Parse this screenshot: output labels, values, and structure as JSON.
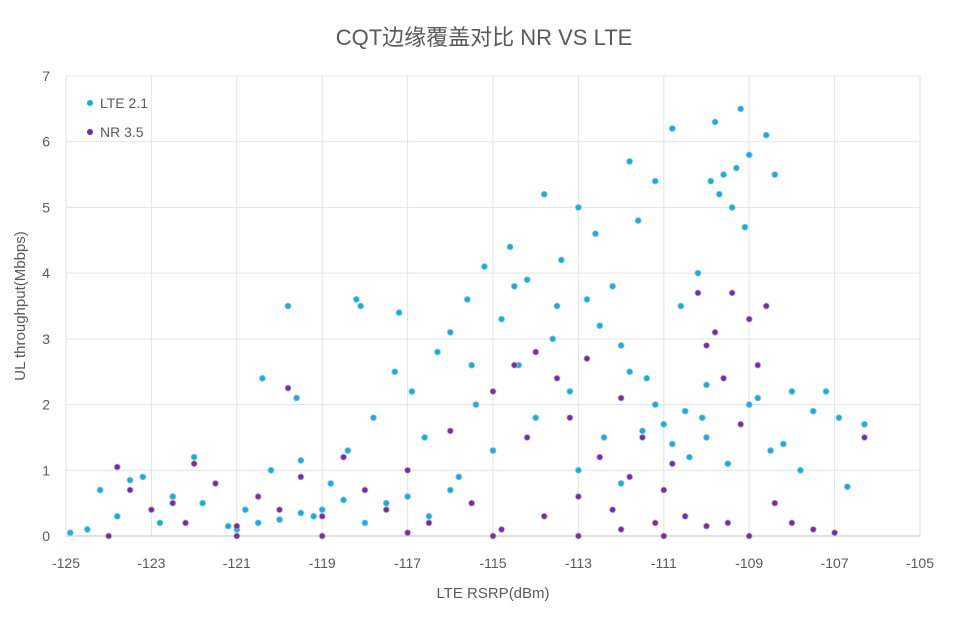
{
  "chart_data": {
    "type": "scatter",
    "title": "CQT边缘覆盖对比 NR VS LTE",
    "xlabel": "LTE RSRP(dBm)",
    "ylabel": "UL throughput(Mbbps)",
    "xlim": [
      -125,
      -105
    ],
    "ylim": [
      0,
      7
    ],
    "xticks": [
      -125,
      -123,
      -121,
      -119,
      -117,
      -115,
      -113,
      -111,
      -109,
      -107,
      -105
    ],
    "yticks": [
      0,
      1,
      2,
      3,
      4,
      5,
      6,
      7
    ],
    "grid": true,
    "legend_position": "top-left",
    "series": [
      {
        "name": "LTE 2.1",
        "color": "#22a9d6",
        "points": [
          [
            -124.9,
            0.05
          ],
          [
            -124.5,
            0.1
          ],
          [
            -124.2,
            0.7
          ],
          [
            -123.8,
            0.3
          ],
          [
            -123.5,
            0.85
          ],
          [
            -123.2,
            0.9
          ],
          [
            -122.8,
            0.2
          ],
          [
            -122.5,
            0.6
          ],
          [
            -122,
            1.2
          ],
          [
            -121.8,
            0.5
          ],
          [
            -121.2,
            0.15
          ],
          [
            -120.8,
            0.4
          ],
          [
            -120.4,
            2.4
          ],
          [
            -120.2,
            1.0
          ],
          [
            -119.8,
            3.5
          ],
          [
            -119.6,
            2.1
          ],
          [
            -119.5,
            1.15
          ],
          [
            -119.2,
            0.3
          ],
          [
            -118.8,
            0.8
          ],
          [
            -118.4,
            1.3
          ],
          [
            -118.2,
            3.6
          ],
          [
            -118.1,
            3.5
          ],
          [
            -117.8,
            1.8
          ],
          [
            -117.5,
            0.5
          ],
          [
            -117.3,
            2.5
          ],
          [
            -117.2,
            3.4
          ],
          [
            -116.9,
            2.2
          ],
          [
            -116.6,
            1.5
          ],
          [
            -116.3,
            2.8
          ],
          [
            -116,
            3.1
          ],
          [
            -115.8,
            0.9
          ],
          [
            -115.6,
            3.6
          ],
          [
            -115.4,
            2.0
          ],
          [
            -115.2,
            4.1
          ],
          [
            -115,
            1.3
          ],
          [
            -114.8,
            3.3
          ],
          [
            -114.6,
            4.4
          ],
          [
            -114.4,
            2.6
          ],
          [
            -114.2,
            3.9
          ],
          [
            -114,
            1.8
          ],
          [
            -113.8,
            5.2
          ],
          [
            -113.6,
            3.0
          ],
          [
            -113.4,
            4.2
          ],
          [
            -113.2,
            2.2
          ],
          [
            -113,
            5.0
          ],
          [
            -112.8,
            3.6
          ],
          [
            -112.6,
            4.6
          ],
          [
            -112.4,
            1.5
          ],
          [
            -112.2,
            3.8
          ],
          [
            -112,
            2.9
          ],
          [
            -111.8,
            5.7
          ],
          [
            -111.6,
            4.8
          ],
          [
            -111.4,
            2.4
          ],
          [
            -111.2,
            5.4
          ],
          [
            -111,
            1.7
          ],
          [
            -110.8,
            6.2
          ],
          [
            -110.6,
            3.5
          ],
          [
            -110.4,
            1.2
          ],
          [
            -110.2,
            4.0
          ],
          [
            -110,
            2.3
          ],
          [
            -109.8,
            6.3
          ],
          [
            -109.6,
            5.5
          ],
          [
            -109.4,
            5.0
          ],
          [
            -109.2,
            6.5
          ],
          [
            -109,
            5.8
          ],
          [
            -108.8,
            2.1
          ],
          [
            -108.6,
            6.1
          ],
          [
            -108.4,
            5.5
          ],
          [
            -108.2,
            1.4
          ],
          [
            -108,
            2.2
          ],
          [
            -107.8,
            1.0
          ],
          [
            -107.5,
            1.9
          ],
          [
            -107.2,
            2.2
          ],
          [
            -106.9,
            1.8
          ],
          [
            -106.7,
            0.75
          ],
          [
            -106.3,
            1.7
          ],
          [
            -121,
            0.1
          ],
          [
            -120.5,
            0.2
          ],
          [
            -120,
            0.25
          ],
          [
            -119.5,
            0.35
          ],
          [
            -119,
            0.4
          ],
          [
            -118.5,
            0.55
          ],
          [
            -118,
            0.2
          ],
          [
            -117,
            0.6
          ],
          [
            -116.5,
            0.3
          ],
          [
            -116,
            0.7
          ],
          [
            -113,
            1.0
          ],
          [
            -112,
            0.8
          ],
          [
            -111.5,
            1.6
          ],
          [
            -110.5,
            1.9
          ],
          [
            -110,
            1.5
          ],
          [
            -109.5,
            1.1
          ],
          [
            -109,
            2.0
          ],
          [
            -108.5,
            1.3
          ],
          [
            -109.7,
            5.2
          ],
          [
            -109.3,
            5.6
          ],
          [
            -109.1,
            4.7
          ],
          [
            -109.9,
            5.4
          ],
          [
            -110.1,
            1.8
          ],
          [
            -110.8,
            1.4
          ],
          [
            -111.2,
            2.0
          ],
          [
            -113.5,
            3.5
          ],
          [
            -114.5,
            3.8
          ],
          [
            -115.5,
            2.6
          ],
          [
            -112.5,
            3.2
          ],
          [
            -111.8,
            2.5
          ]
        ]
      },
      {
        "name": "NR 3.5",
        "color": "#7030a0",
        "points": [
          [
            -124,
            0
          ],
          [
            -123.8,
            1.05
          ],
          [
            -123.5,
            0.7
          ],
          [
            -123,
            0.4
          ],
          [
            -122.5,
            0.5
          ],
          [
            -122.2,
            0.2
          ],
          [
            -122,
            1.1
          ],
          [
            -121.5,
            0.8
          ],
          [
            -121,
            0.15
          ],
          [
            -120.5,
            0.6
          ],
          [
            -120,
            0.4
          ],
          [
            -119.8,
            2.25
          ],
          [
            -119.5,
            0.9
          ],
          [
            -119,
            0.3
          ],
          [
            -118.5,
            1.2
          ],
          [
            -118,
            0.7
          ],
          [
            -117.5,
            0.4
          ],
          [
            -117,
            1.0
          ],
          [
            -116.5,
            0.2
          ],
          [
            -116,
            1.6
          ],
          [
            -115.5,
            0.5
          ],
          [
            -115,
            2.2
          ],
          [
            -114.8,
            0.1
          ],
          [
            -114.5,
            2.6
          ],
          [
            -114.2,
            1.5
          ],
          [
            -114,
            2.8
          ],
          [
            -113.8,
            0.3
          ],
          [
            -113.5,
            2.4
          ],
          [
            -113.2,
            1.8
          ],
          [
            -113,
            0.6
          ],
          [
            -112.8,
            2.7
          ],
          [
            -112.5,
            1.2
          ],
          [
            -112.2,
            0.4
          ],
          [
            -112,
            2.1
          ],
          [
            -111.8,
            0.9
          ],
          [
            -111.5,
            1.5
          ],
          [
            -111.2,
            0.2
          ],
          [
            -111,
            0.7
          ],
          [
            -110.8,
            1.1
          ],
          [
            -110.5,
            0.3
          ],
          [
            -110.2,
            3.7
          ],
          [
            -110,
            2.9
          ],
          [
            -109.8,
            3.1
          ],
          [
            -109.6,
            2.4
          ],
          [
            -109.4,
            3.7
          ],
          [
            -109.2,
            1.7
          ],
          [
            -109,
            3.3
          ],
          [
            -108.8,
            2.6
          ],
          [
            -108.6,
            3.5
          ],
          [
            -108.4,
            0.5
          ],
          [
            -108,
            0.2
          ],
          [
            -107.5,
            0.1
          ],
          [
            -107,
            0.05
          ],
          [
            -106.3,
            1.5
          ],
          [
            -115,
            0
          ],
          [
            -113,
            0
          ],
          [
            -111,
            0
          ],
          [
            -109,
            0
          ],
          [
            -119,
            0
          ],
          [
            -121,
            0
          ],
          [
            -117,
            0.05
          ],
          [
            -112,
            0.1
          ],
          [
            -110,
            0.15
          ],
          [
            -109.5,
            0.2
          ]
        ]
      }
    ]
  }
}
